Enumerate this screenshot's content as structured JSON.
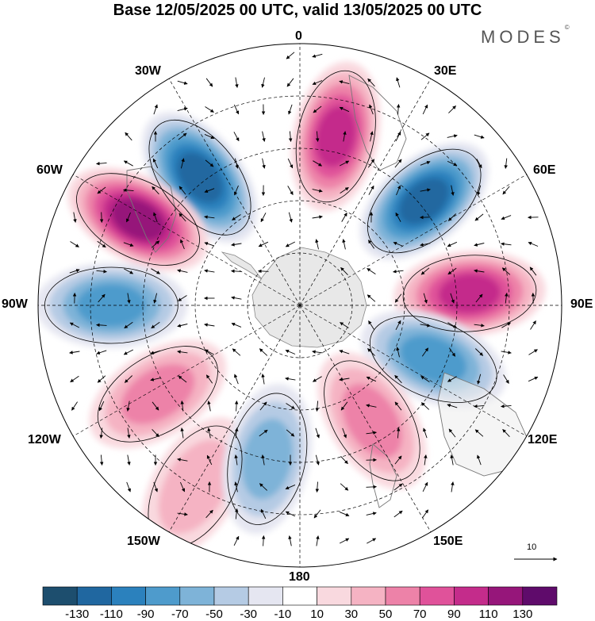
{
  "title": "Base 12/05/2025 00 UTC, valid 13/05/2025 00 UTC",
  "brand": "MODES",
  "brand_mark": "©",
  "longitude_labels": {
    "n0": "0",
    "n30e": "30E",
    "n60e": "60E",
    "n90e": "90E",
    "n120e": "120E",
    "n150e": "150E",
    "n180": "180",
    "n150w": "150W",
    "n120w": "120W",
    "n90w": "90W",
    "n60w": "60W",
    "n30w": "30W"
  },
  "vector_reference": {
    "value": "10"
  },
  "icons": [
    "reference-arrow-icon"
  ],
  "colorbar": {
    "boundaries": [
      "-130",
      "-110",
      "-90",
      "-70",
      "-50",
      "-30",
      "-10",
      "10",
      "30",
      "50",
      "70",
      "90",
      "110",
      "130"
    ],
    "colors": [
      "#1d4e6e",
      "#2067a0",
      "#2b81bd",
      "#4e9bcc",
      "#7eb3d8",
      "#b5cbe4",
      "#e5e6f1",
      "#ffffff",
      "#f9d9df",
      "#f5b3c3",
      "#ed82a8",
      "#e0529a",
      "#c42c8b",
      "#96167a",
      "#5f0b6b"
    ]
  },
  "map": {
    "projection": "south polar stereographic",
    "anomalies": [
      {
        "lon": -38,
        "rad": 0.62,
        "value": -130
      },
      {
        "lon": -62,
        "rad": 0.7,
        "value": 130
      },
      {
        "lon": -90,
        "rad": 0.72,
        "value": -90
      },
      {
        "lon": -122,
        "rad": 0.64,
        "value": 70
      },
      {
        "lon": -150,
        "rad": 0.8,
        "value": 50
      },
      {
        "lon": -168,
        "rad": 0.6,
        "value": -70
      },
      {
        "lon": 12,
        "rad": 0.66,
        "value": 110
      },
      {
        "lon": 50,
        "rad": 0.62,
        "value": -130
      },
      {
        "lon": 86,
        "rad": 0.65,
        "value": 110
      },
      {
        "lon": 112,
        "rad": 0.55,
        "value": -90
      },
      {
        "lon": 148,
        "rad": 0.52,
        "value": 70
      }
    ]
  }
}
